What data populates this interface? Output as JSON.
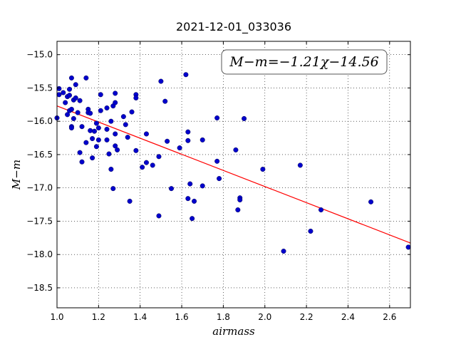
{
  "chart_data": {
    "type": "scatter",
    "title": "2021-12-01_033036",
    "xlabel": "airmass",
    "ylabel": "M−m",
    "xlim": [
      1.0,
      2.7
    ],
    "ylim": [
      -18.8,
      -14.8
    ],
    "y_inverted": true,
    "grid": true,
    "xticks": [
      "1.0",
      "1.2",
      "1.4",
      "1.6",
      "1.8",
      "2.0",
      "2.2",
      "2.4",
      "2.6"
    ],
    "yticks": [
      "−15.0",
      "−15.5",
      "−16.0",
      "−16.5",
      "−17.0",
      "−17.5",
      "−18.0",
      "−18.5"
    ],
    "annotation": "M−m=−1.21χ−14.56",
    "fit": {
      "slope": -1.21,
      "intercept": -14.56,
      "color": "#ff0000"
    },
    "point_color": "#0000cc",
    "points": [
      [
        1.01,
        -15.51
      ],
      [
        1.01,
        -15.6
      ],
      [
        1.0,
        -15.95
      ],
      [
        1.03,
        -15.57
      ],
      [
        1.04,
        -15.72
      ],
      [
        1.05,
        -15.63
      ],
      [
        1.06,
        -15.61
      ],
      [
        1.06,
        -15.84
      ],
      [
        1.05,
        -15.9
      ],
      [
        1.06,
        -15.52
      ],
      [
        1.07,
        -15.35
      ],
      [
        1.07,
        -15.82
      ],
      [
        1.08,
        -15.68
      ],
      [
        1.08,
        -15.96
      ],
      [
        1.09,
        -15.65
      ],
      [
        1.09,
        -15.45
      ],
      [
        1.07,
        -16.08
      ],
      [
        1.07,
        -16.1
      ],
      [
        1.1,
        -15.87
      ],
      [
        1.11,
        -15.69
      ],
      [
        1.11,
        -16.47
      ],
      [
        1.12,
        -16.08
      ],
      [
        1.12,
        -16.61
      ],
      [
        1.14,
        -15.35
      ],
      [
        1.15,
        -15.82
      ],
      [
        1.15,
        -15.87
      ],
      [
        1.14,
        -16.32
      ],
      [
        1.16,
        -16.14
      ],
      [
        1.16,
        -15.88
      ],
      [
        1.17,
        -16.26
      ],
      [
        1.17,
        -16.55
      ],
      [
        1.18,
        -16.15
      ],
      [
        1.19,
        -16.03
      ],
      [
        1.19,
        -16.38
      ],
      [
        1.2,
        -16.1
      ],
      [
        1.2,
        -16.28
      ],
      [
        1.21,
        -15.6
      ],
      [
        1.21,
        -15.84
      ],
      [
        1.24,
        -15.8
      ],
      [
        1.24,
        -16.12
      ],
      [
        1.24,
        -16.28
      ],
      [
        1.25,
        -16.49
      ],
      [
        1.26,
        -16.0
      ],
      [
        1.26,
        -16.72
      ],
      [
        1.27,
        -15.77
      ],
      [
        1.28,
        -15.58
      ],
      [
        1.28,
        -15.72
      ],
      [
        1.28,
        -16.19
      ],
      [
        1.28,
        -16.37
      ],
      [
        1.29,
        -16.43
      ],
      [
        1.27,
        -17.01
      ],
      [
        1.32,
        -15.93
      ],
      [
        1.33,
        -16.05
      ],
      [
        1.34,
        -16.24
      ],
      [
        1.35,
        -17.2
      ],
      [
        1.36,
        -15.86
      ],
      [
        1.38,
        -15.6
      ],
      [
        1.38,
        -15.65
      ],
      [
        1.38,
        -16.44
      ],
      [
        1.41,
        -16.69
      ],
      [
        1.43,
        -16.19
      ],
      [
        1.43,
        -16.62
      ],
      [
        1.46,
        -16.66
      ],
      [
        1.49,
        -16.53
      ],
      [
        1.49,
        -17.42
      ],
      [
        1.5,
        -15.4
      ],
      [
        1.52,
        -15.7
      ],
      [
        1.53,
        -16.3
      ],
      [
        1.55,
        -17.01
      ],
      [
        1.59,
        -16.4
      ],
      [
        1.62,
        -15.3
      ],
      [
        1.63,
        -16.16
      ],
      [
        1.63,
        -16.29
      ],
      [
        1.63,
        -17.16
      ],
      [
        1.64,
        -16.94
      ],
      [
        1.65,
        -17.46
      ],
      [
        1.66,
        -17.2
      ],
      [
        1.7,
        -16.28
      ],
      [
        1.7,
        -16.97
      ],
      [
        1.77,
        -15.95
      ],
      [
        1.77,
        -16.6
      ],
      [
        1.78,
        -16.86
      ],
      [
        1.86,
        -16.43
      ],
      [
        1.87,
        -17.33
      ],
      [
        1.88,
        -17.15
      ],
      [
        1.88,
        -17.18
      ],
      [
        1.9,
        -15.96
      ],
      [
        1.99,
        -16.72
      ],
      [
        2.09,
        -17.95
      ],
      [
        2.17,
        -16.66
      ],
      [
        2.22,
        -17.65
      ],
      [
        2.27,
        -17.33
      ],
      [
        2.51,
        -17.21
      ],
      [
        2.69,
        -17.89
      ]
    ]
  }
}
